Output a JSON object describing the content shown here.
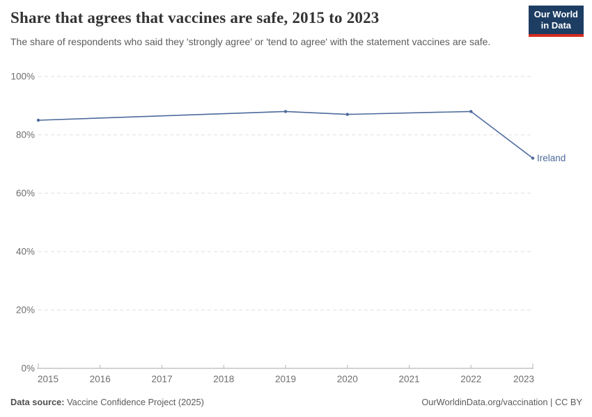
{
  "header": {
    "title": "Share that agrees that vaccines are safe, 2015 to 2023",
    "subtitle": "The share of respondents who said they 'strongly agree' or 'tend to agree' with the statement vaccines are safe."
  },
  "logo": {
    "line1": "Our World",
    "line2": "in Data",
    "bg_color": "#1d3d63",
    "accent_color": "#d42b20"
  },
  "chart_data": {
    "type": "line",
    "title": "Share that agrees that vaccines are safe, 2015 to 2023",
    "x": [
      2015,
      2019,
      2020,
      2022,
      2023
    ],
    "series": [
      {
        "name": "Ireland",
        "color": "#4c6a9c",
        "values": [
          85,
          88,
          87,
          88,
          72
        ]
      }
    ],
    "x_ticks": [
      2015,
      2016,
      2017,
      2018,
      2019,
      2020,
      2021,
      2022,
      2023
    ],
    "y_ticks": [
      0,
      20,
      40,
      60,
      80,
      100
    ],
    "y_tick_labels": [
      "0%",
      "20%",
      "40%",
      "60%",
      "80%",
      "100%"
    ],
    "xlim": [
      2015,
      2023
    ],
    "ylim": [
      0,
      100
    ],
    "grid": "horizontal-dashed",
    "legend_position": "end-of-line-label",
    "colors": {
      "gridline": "#dcdcdc",
      "axis": "#a5a5a5",
      "tick_label": "#6e6e6e"
    }
  },
  "footer": {
    "source_label": "Data source:",
    "source_value": " Vaccine Confidence Project (2025)",
    "attribution": "OurWorldinData.org/vaccination | CC BY"
  }
}
